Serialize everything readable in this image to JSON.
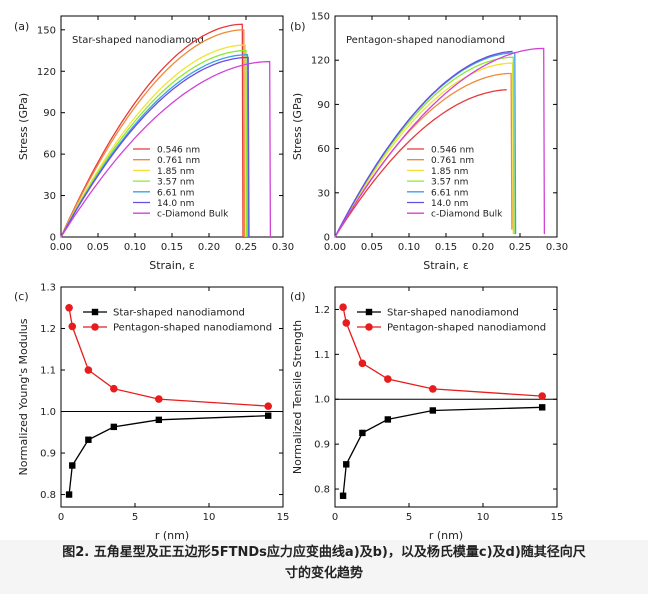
{
  "caption": {
    "line1": "图2. 五角星型及正五边形5FTNDs应力应变曲线a)及b)，以及杨氏模量c)及d)随其径向尺",
    "line2": "寸的变化趋势"
  },
  "chart_data": [
    {
      "type": "line",
      "panel_label": "(a)",
      "inset_title": "Star-shaped nanodiamond",
      "xlabel": "Strain, ε",
      "ylabel": "Stress (GPa)",
      "xlim": [
        0,
        0.3
      ],
      "ylim": [
        0,
        160
      ],
      "xticks": [
        "0.00",
        "0.05",
        "0.10",
        "0.15",
        "0.20",
        "0.25",
        "0.30"
      ],
      "yticks": [
        "0",
        "30",
        "60",
        "90",
        "120",
        "150"
      ],
      "legend_position": "lower-center",
      "series": [
        {
          "name": "0.546 nm",
          "color": "#e83a3a",
          "peak_strain": 0.245,
          "peak_stress": 154,
          "fracture_to": 0
        },
        {
          "name": "0.761 nm",
          "color": "#f08a3a",
          "peak_strain": 0.247,
          "peak_stress": 150,
          "fracture_to": 0
        },
        {
          "name": "1.85 nm",
          "color": "#f2e332",
          "peak_strain": 0.249,
          "peak_stress": 139,
          "fracture_to": 0
        },
        {
          "name": "3.57 nm",
          "color": "#8ee832",
          "peak_strain": 0.25,
          "peak_stress": 135,
          "fracture_to": 0
        },
        {
          "name": "6.61 nm",
          "color": "#3aa0e8",
          "peak_strain": 0.252,
          "peak_stress": 132,
          "fracture_to": 0
        },
        {
          "name": "14.0 nm",
          "color": "#6a4ee0",
          "peak_strain": 0.253,
          "peak_stress": 130,
          "fracture_to": 0
        },
        {
          "name": "c-Diamond Bulk",
          "color": "#d043d6",
          "peak_strain": 0.282,
          "peak_stress": 127,
          "fracture_to": 0
        }
      ]
    },
    {
      "type": "line",
      "panel_label": "(b)",
      "inset_title": "Pentagon-shaped nanodiamond",
      "xlabel": "Strain, ε",
      "ylabel": "Stress (GPa)",
      "xlim": [
        0,
        0.3
      ],
      "ylim": [
        0,
        150
      ],
      "xticks": [
        "0.00",
        "0.05",
        "0.10",
        "0.15",
        "0.20",
        "0.25",
        "0.30"
      ],
      "yticks": [
        "0",
        "30",
        "60",
        "90",
        "120",
        "150"
      ],
      "legend_position": "lower-center",
      "series": [
        {
          "name": "0.546 nm",
          "color": "#e83a3a",
          "peak_strain": 0.236,
          "peak_stress": 100,
          "fracture_to": 2
        },
        {
          "name": "0.761 nm",
          "color": "#f08a3a",
          "peak_strain": 0.238,
          "peak_stress": 111,
          "fracture_to": 5
        },
        {
          "name": "1.85 nm",
          "color": "#f2e332",
          "peak_strain": 0.24,
          "peak_stress": 118,
          "fracture_to": 2
        },
        {
          "name": "3.57 nm",
          "color": "#8ee832",
          "peak_strain": 0.241,
          "peak_stress": 122,
          "fracture_to": 2
        },
        {
          "name": "6.61 nm",
          "color": "#3aa0e8",
          "peak_strain": 0.243,
          "peak_stress": 125,
          "fracture_to": 2
        },
        {
          "name": "14.0 nm",
          "color": "#6a4ee0",
          "peak_strain": 0.244,
          "peak_stress": 126,
          "fracture_to": 2
        },
        {
          "name": "c-Diamond Bulk",
          "color": "#d043d6",
          "peak_strain": 0.282,
          "peak_stress": 128,
          "fracture_to": 2
        }
      ]
    },
    {
      "type": "line",
      "panel_label": "(c)",
      "xlabel": "r (nm)",
      "ylabel": "Normalized Young's Modulus",
      "xlim": [
        0,
        15
      ],
      "ylim": [
        0.77,
        1.3
      ],
      "xticks": [
        "0",
        "5",
        "10",
        "15"
      ],
      "yticks": [
        "0.8",
        "0.9",
        "1.0",
        "1.1",
        "1.2",
        "1.3"
      ],
      "reference_line": 1.0,
      "legend_position": "top-right",
      "series": [
        {
          "name": "Star-shaped nanodiamond",
          "color": "#000000",
          "marker": "square",
          "x": [
            0.546,
            0.761,
            1.85,
            3.57,
            6.61,
            14.0
          ],
          "y": [
            0.8,
            0.87,
            0.932,
            0.963,
            0.98,
            0.99
          ]
        },
        {
          "name": "Pentagon-shaped nanodiamond",
          "color": "#e81c1c",
          "marker": "circle",
          "x": [
            0.546,
            0.761,
            1.85,
            3.57,
            6.61,
            14.0
          ],
          "y": [
            1.25,
            1.205,
            1.1,
            1.055,
            1.03,
            1.013
          ]
        }
      ]
    },
    {
      "type": "line",
      "panel_label": "(d)",
      "xlabel": "r (nm)",
      "ylabel": "Normalized Tensile Strength",
      "xlim": [
        0,
        15
      ],
      "ylim": [
        0.76,
        1.25
      ],
      "xticks": [
        "0",
        "5",
        "10",
        "15"
      ],
      "yticks": [
        "0.8",
        "0.9",
        "1.0",
        "1.1",
        "1.2"
      ],
      "reference_line": 1.0,
      "legend_position": "top-right",
      "series": [
        {
          "name": "Star-shaped nanodiamond",
          "color": "#000000",
          "marker": "square",
          "x": [
            0.546,
            0.761,
            1.85,
            3.57,
            6.61,
            14.0
          ],
          "y": [
            0.785,
            0.855,
            0.925,
            0.955,
            0.975,
            0.982
          ]
        },
        {
          "name": "Pentagon-shaped nanodiamond",
          "color": "#e81c1c",
          "marker": "circle",
          "x": [
            0.546,
            0.761,
            1.85,
            3.57,
            6.61,
            14.0
          ],
          "y": [
            1.205,
            1.17,
            1.08,
            1.045,
            1.023,
            1.007
          ]
        }
      ]
    }
  ]
}
